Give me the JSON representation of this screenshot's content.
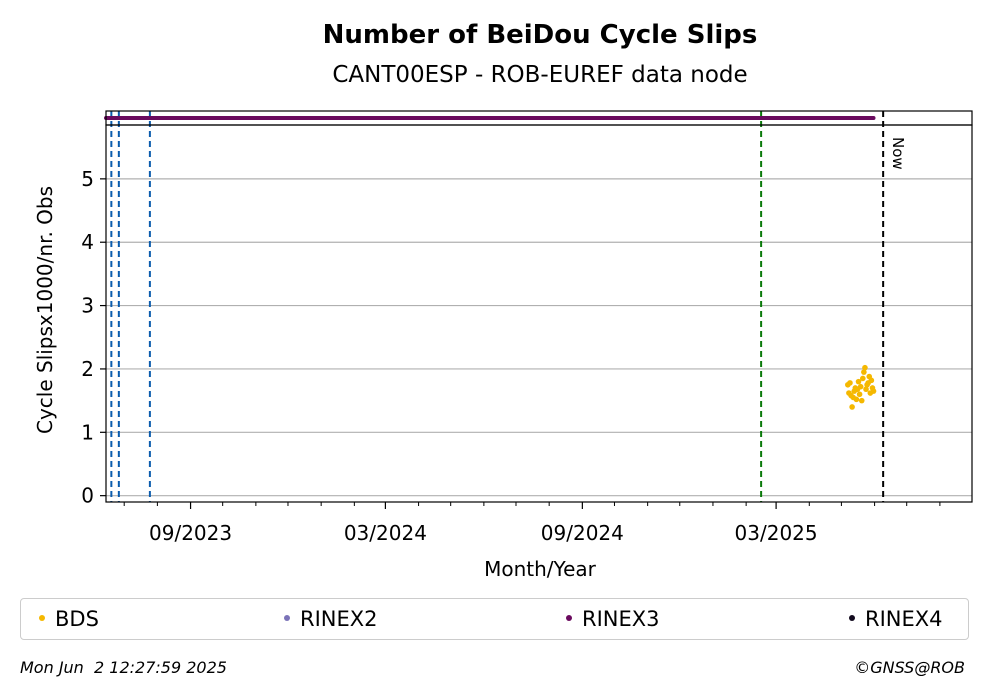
{
  "chart_data": {
    "type": "scatter",
    "title": "Number of BeiDou Cycle Slips",
    "subtitle": "CANT00ESP - ROB-EUREF data node",
    "xlabel": "Month/Year",
    "ylabel": "Cycle Slipsx1000/nr. Obs",
    "x_range": [
      "2023-06-14",
      "2025-08-31"
    ],
    "x_ticks": [
      {
        "date": "2023-09-01",
        "label": "09/2023"
      },
      {
        "date": "2024-03-01",
        "label": "03/2024"
      },
      {
        "date": "2024-09-01",
        "label": "09/2024"
      },
      {
        "date": "2025-03-01",
        "label": "03/2025"
      }
    ],
    "x_minor_ticks": [
      "2023-07-01",
      "2023-08-01",
      "2023-10-01",
      "2023-11-01",
      "2023-12-01",
      "2024-01-01",
      "2024-02-01",
      "2024-04-01",
      "2024-05-01",
      "2024-06-01",
      "2024-07-01",
      "2024-08-01",
      "2024-10-01",
      "2024-11-01",
      "2024-12-01",
      "2025-01-01",
      "2025-02-01",
      "2025-04-01",
      "2025-05-01",
      "2025-06-01",
      "2025-07-01",
      "2025-08-01"
    ],
    "ylim": [
      -0.1,
      5.85
    ],
    "y_ticks": [
      0,
      1,
      2,
      3,
      4,
      5
    ],
    "grid": "y",
    "series": [
      {
        "name": "BDS",
        "color": "#f5b800",
        "points": [
          [
            "2025-05-07",
            1.75
          ],
          [
            "2025-05-08",
            1.62
          ],
          [
            "2025-05-09",
            1.78
          ],
          [
            "2025-05-10",
            1.58
          ],
          [
            "2025-05-11",
            1.4
          ],
          [
            "2025-05-12",
            1.55
          ],
          [
            "2025-05-13",
            1.65
          ],
          [
            "2025-05-14",
            1.7
          ],
          [
            "2025-05-15",
            1.52
          ],
          [
            "2025-05-16",
            1.68
          ],
          [
            "2025-05-17",
            1.8
          ],
          [
            "2025-05-18",
            1.6
          ],
          [
            "2025-05-19",
            1.72
          ],
          [
            "2025-05-20",
            1.5
          ],
          [
            "2025-05-21",
            1.85
          ],
          [
            "2025-05-22",
            1.95
          ],
          [
            "2025-05-23",
            2.02
          ],
          [
            "2025-05-24",
            1.68
          ],
          [
            "2025-05-25",
            1.75
          ],
          [
            "2025-05-26",
            1.78
          ],
          [
            "2025-05-27",
            1.88
          ],
          [
            "2025-05-28",
            1.62
          ],
          [
            "2025-05-29",
            1.82
          ],
          [
            "2025-05-30",
            1.7
          ],
          [
            "2025-05-31",
            1.65
          ]
        ]
      },
      {
        "name": "RINEX2",
        "color": "#7b73b8",
        "points": []
      },
      {
        "name": "RINEX3",
        "color": "#6a0a5e",
        "band_range": [
          "2023-06-14",
          "2025-05-31"
        ]
      },
      {
        "name": "RINEX4",
        "color": "#120a1e",
        "points": []
      }
    ],
    "vlines": [
      {
        "date": "2023-06-19",
        "color": "#0b5cad",
        "style": "dashed"
      },
      {
        "date": "2023-06-26",
        "color": "#0b5cad",
        "style": "dashed"
      },
      {
        "date": "2023-07-25",
        "color": "#0b5cad",
        "style": "dashed"
      },
      {
        "date": "2025-02-15",
        "color": "#0a7a0a",
        "style": "dashed"
      },
      {
        "date": "2025-06-09",
        "color": "#000000",
        "style": "dashed",
        "label": "Now"
      }
    ]
  },
  "legend": [
    "BDS",
    "RINEX2",
    "RINEX3",
    "RINEX4"
  ],
  "colors": {
    "BDS": "#f5b800",
    "RINEX2": "#7b73b8",
    "RINEX3": "#6a0a5e",
    "RINEX4": "#120a1e"
  },
  "footer": {
    "timestamp": "Mon Jun  2 12:27:59 2025",
    "credit": "©GNSS@ROB"
  }
}
